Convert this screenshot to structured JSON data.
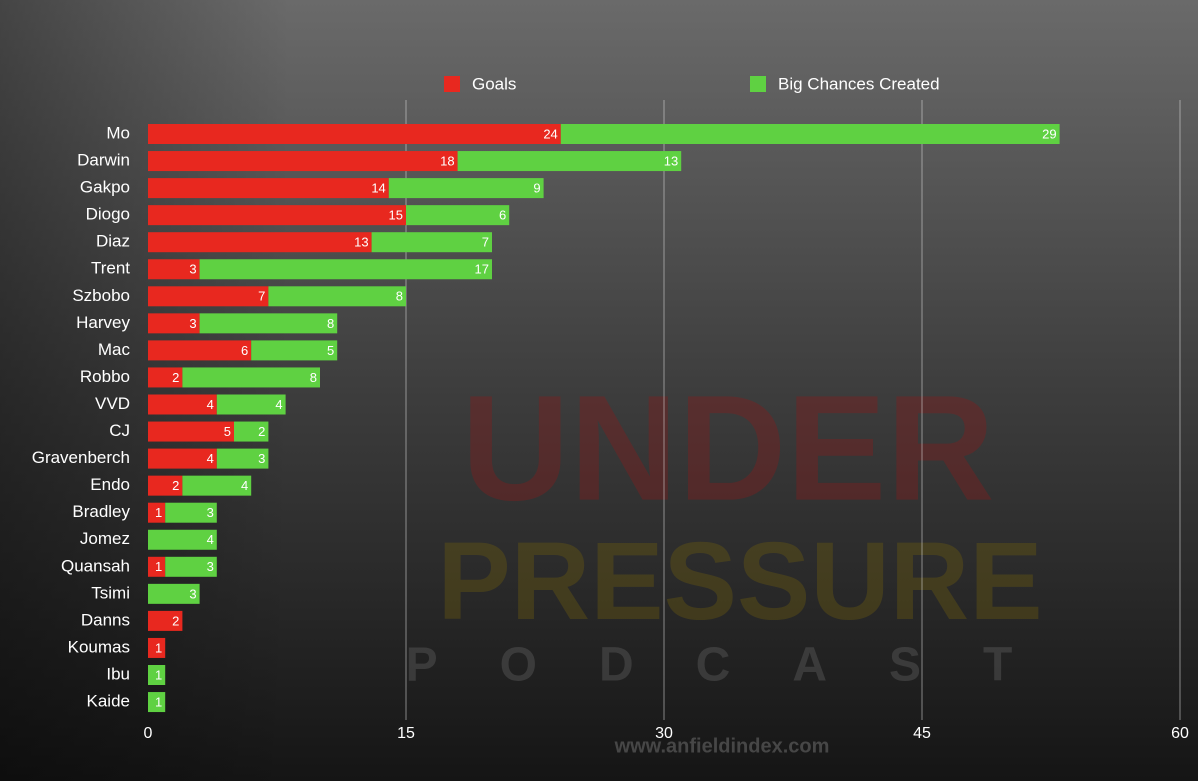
{
  "chart_data": {
    "type": "stacked_bar_horizontal",
    "categories": [
      "Mo",
      "Darwin",
      "Gakpo",
      "Diogo",
      "Diaz",
      "Trent",
      "Szbobo",
      "Harvey",
      "Mac",
      "Robbo",
      "VVD",
      "CJ",
      "Gravenberch",
      "Endo",
      "Bradley",
      "Jomez",
      "Quansah",
      "Tsimi",
      "Danns",
      "Koumas",
      "Ibu",
      "Kaide"
    ],
    "series": [
      {
        "name": "Goals",
        "color": "#e8281f",
        "values": [
          24,
          18,
          14,
          15,
          13,
          3,
          7,
          3,
          6,
          2,
          4,
          5,
          4,
          2,
          1,
          null,
          1,
          null,
          2,
          1,
          null,
          null
        ]
      },
      {
        "name": "Big Chances Created",
        "color": "#5fd142",
        "values": [
          29,
          13,
          9,
          6,
          7,
          17,
          8,
          8,
          5,
          8,
          4,
          2,
          3,
          4,
          3,
          4,
          3,
          3,
          null,
          null,
          1,
          1
        ]
      }
    ],
    "xlim": [
      0,
      60
    ],
    "xticks": [
      0,
      15,
      30,
      45,
      60
    ],
    "grid": true,
    "legend": "top",
    "watermark": [
      "UNDER",
      "PRESSURE",
      "PODCAST",
      "www.anfieldindex.com"
    ]
  }
}
